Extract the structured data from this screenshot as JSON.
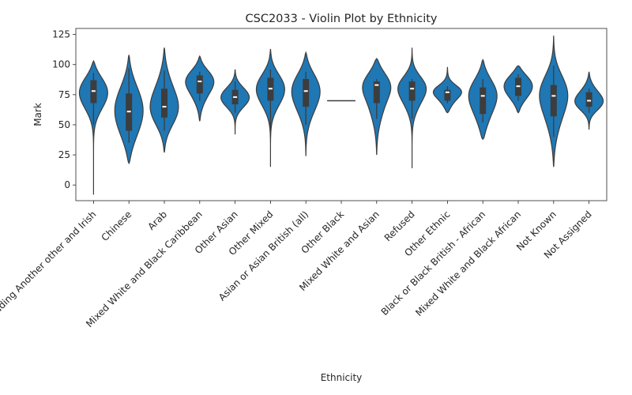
{
  "chart_data": {
    "type": "violin",
    "title": "CSC2033 - Violin Plot by Ethnicity",
    "xlabel": "Ethnicity",
    "ylabel": "Mark",
    "ylim": [
      -13,
      130
    ],
    "yticks": [
      0,
      25,
      50,
      75,
      100,
      125
    ],
    "color": "#1f77b4",
    "categories": [
      "White including Another other and Irish",
      "Chinese",
      "Arab",
      "Mixed White and Black Caribbean",
      "Other Asian",
      "Other Mixed",
      "Asian or Asian British (all)",
      "Other Black",
      "Mixed White and Asian",
      "Refused",
      "Other Ethnic",
      "Black or Black British - African",
      "Mixed White and Black African",
      "Not Known",
      "Not Assigned"
    ],
    "violins": [
      {
        "min": -8,
        "max": 103,
        "q1": 68,
        "median": 78,
        "q3": 87,
        "whisker_low": 50,
        "whisker_high": 93
      },
      {
        "min": 18,
        "max": 108,
        "q1": 45,
        "median": 61,
        "q3": 76,
        "whisker_low": 35,
        "whisker_high": 97
      },
      {
        "min": 27,
        "max": 114,
        "q1": 56,
        "median": 65,
        "q3": 80,
        "whisker_low": 45,
        "whisker_high": 95
      },
      {
        "min": 53,
        "max": 107,
        "q1": 76,
        "median": 86,
        "q3": 91,
        "whisker_low": 70,
        "whisker_high": 94
      },
      {
        "min": 42,
        "max": 96,
        "q1": 67,
        "median": 73,
        "q3": 79,
        "whisker_low": 60,
        "whisker_high": 86
      },
      {
        "min": 15,
        "max": 113,
        "q1": 70,
        "median": 80,
        "q3": 89,
        "whisker_low": 40,
        "whisker_high": 96
      },
      {
        "min": 24,
        "max": 110,
        "q1": 65,
        "median": 78,
        "q3": 88,
        "whisker_low": 50,
        "whisker_high": 94
      },
      {
        "min": 70,
        "max": 70,
        "q1": 70,
        "median": 70,
        "q3": 70,
        "whisker_low": 70,
        "whisker_high": 70
      },
      {
        "min": 25,
        "max": 105,
        "q1": 68,
        "median": 83,
        "q3": 86,
        "whisker_low": 55,
        "whisker_high": 88
      },
      {
        "min": 14,
        "max": 114,
        "q1": 70,
        "median": 80,
        "q3": 86,
        "whisker_low": 55,
        "whisker_high": 88
      },
      {
        "min": 60,
        "max": 98,
        "q1": 70,
        "median": 77,
        "q3": 79,
        "whisker_low": 68,
        "whisker_high": 82
      },
      {
        "min": 38,
        "max": 104,
        "q1": 59,
        "median": 74,
        "q3": 81,
        "whisker_low": 52,
        "whisker_high": 88
      },
      {
        "min": 60,
        "max": 99,
        "q1": 74,
        "median": 82,
        "q3": 89,
        "whisker_low": 70,
        "whisker_high": 92
      },
      {
        "min": 15,
        "max": 124,
        "q1": 57,
        "median": 74,
        "q3": 83,
        "whisker_low": 40,
        "whisker_high": 99
      },
      {
        "min": 46,
        "max": 94,
        "q1": 65,
        "median": 70,
        "q3": 77,
        "whisker_low": 60,
        "whisker_high": 80
      }
    ]
  }
}
